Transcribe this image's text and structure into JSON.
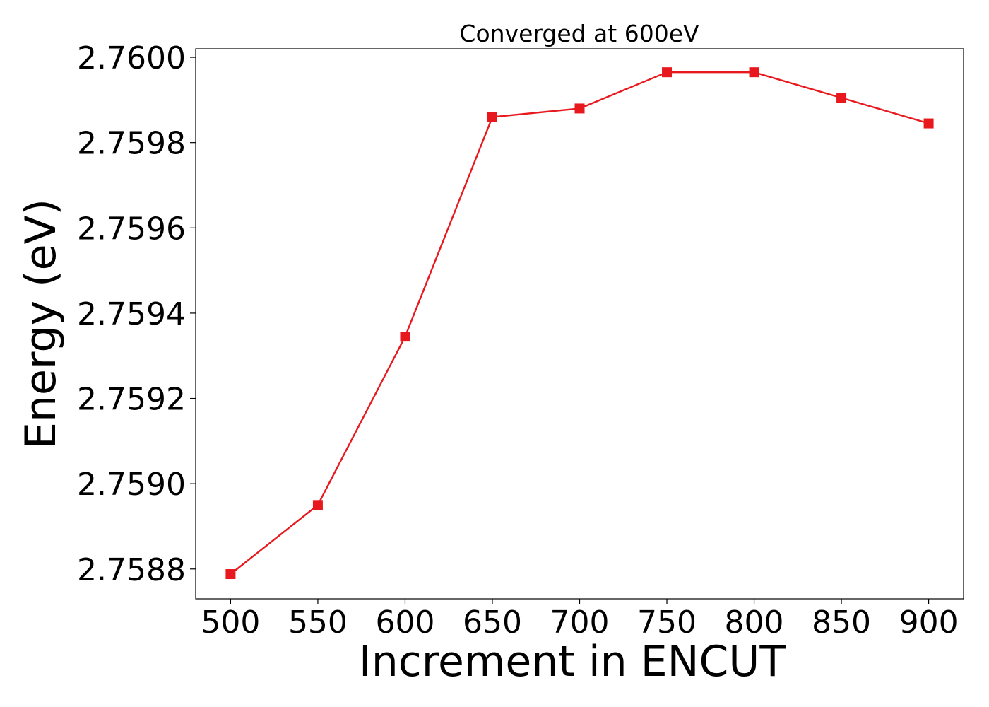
{
  "chart_data": {
    "type": "line",
    "title": "Converged at 600eV",
    "xlabel": "Increment in ENCUT",
    "ylabel": "Energy (eV)",
    "x": [
      500,
      550,
      600,
      650,
      700,
      750,
      800,
      850,
      900
    ],
    "series": [
      {
        "values": [
          2.758788,
          2.75895,
          2.759345,
          2.75986,
          2.75988,
          2.759965,
          2.759965,
          2.759905,
          2.759845
        ],
        "color": "#e8191e",
        "marker": "square"
      }
    ],
    "xticks": [
      "500",
      "550",
      "600",
      "650",
      "700",
      "750",
      "800",
      "850",
      "900"
    ],
    "yticks": [
      "2.7588",
      "2.7590",
      "2.7592",
      "2.7594",
      "2.7596",
      "2.7598",
      "2.7600"
    ],
    "xlim": [
      480,
      920
    ],
    "ylim": [
      2.75873,
      2.76002
    ],
    "grid": false,
    "legend": "none"
  }
}
